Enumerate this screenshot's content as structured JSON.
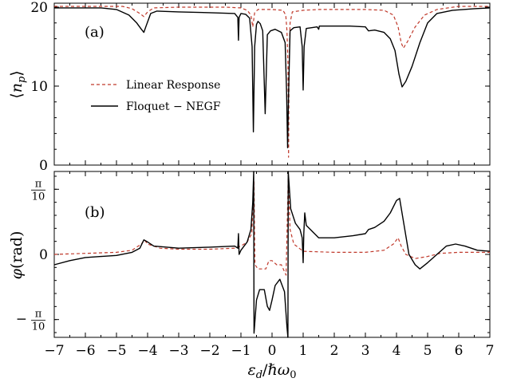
{
  "colors": {
    "linear_response": "#c0392b",
    "floquet_negf": "#000000"
  },
  "chart_data": [
    {
      "type": "line",
      "panel_label": "(a)",
      "ylabel": "⟨n_p⟩",
      "xlim": [
        -7,
        7
      ],
      "ylim": [
        0,
        20.5
      ],
      "yticks": [
        {
          "value": 0,
          "label": "0"
        },
        {
          "value": 10,
          "label": "10"
        },
        {
          "value": 20,
          "label": "20"
        }
      ],
      "legend": {
        "position": "center-left"
      },
      "series": [
        {
          "name": "Linear Response",
          "style": "dashed",
          "color": "#c0392b",
          "points": [
            [
              -7,
              20.1
            ],
            [
              -4.8,
              20.1
            ],
            [
              -4.5,
              19.8
            ],
            [
              -4.25,
              19.2
            ],
            [
              -4.12,
              18.8
            ],
            [
              -4.0,
              19.4
            ],
            [
              -3.8,
              19.9
            ],
            [
              -3,
              20.0
            ],
            [
              -1.5,
              20.0
            ],
            [
              -1.0,
              19.9
            ],
            [
              -0.8,
              19.6
            ],
            [
              -0.68,
              19.0
            ],
            [
              -0.62,
              17.5
            ],
            [
              -0.56,
              19.3
            ],
            [
              -0.45,
              19.7
            ],
            [
              0,
              19.7
            ],
            [
              0.35,
              19.6
            ],
            [
              0.44,
              19.0
            ],
            [
              0.48,
              17.0
            ],
            [
              0.51,
              13.0
            ],
            [
              0.53,
              1.0
            ],
            [
              0.55,
              13.0
            ],
            [
              0.58,
              18.0
            ],
            [
              0.65,
              19.4
            ],
            [
              1.0,
              19.6
            ],
            [
              1.5,
              19.7
            ],
            [
              3.0,
              19.7
            ],
            [
              3.6,
              19.6
            ],
            [
              3.9,
              19.0
            ],
            [
              4.05,
              17.5
            ],
            [
              4.15,
              15.5
            ],
            [
              4.22,
              14.8
            ],
            [
              4.35,
              15.6
            ],
            [
              4.6,
              17.5
            ],
            [
              4.9,
              19.0
            ],
            [
              5.3,
              19.7
            ],
            [
              6.0,
              20.1
            ],
            [
              7,
              20.1
            ]
          ]
        },
        {
          "name": "Floquet − NEGF",
          "style": "solid",
          "color": "#000000",
          "points": [
            [
              -7,
              19.9
            ],
            [
              -5.5,
              19.9
            ],
            [
              -5.0,
              19.7
            ],
            [
              -4.6,
              19.0
            ],
            [
              -4.35,
              18.0
            ],
            [
              -4.2,
              17.2
            ],
            [
              -4.12,
              16.8
            ],
            [
              -4.05,
              17.6
            ],
            [
              -3.9,
              19.2
            ],
            [
              -3.7,
              19.5
            ],
            [
              -3.0,
              19.4
            ],
            [
              -2.0,
              19.3
            ],
            [
              -1.2,
              19.2
            ],
            [
              -1.1,
              18.7
            ],
            [
              -1.08,
              15.8
            ],
            [
              -1.06,
              18.7
            ],
            [
              -1.0,
              19.2
            ],
            [
              -0.85,
              19.1
            ],
            [
              -0.72,
              18.6
            ],
            [
              -0.64,
              15.0
            ],
            [
              -0.6,
              4.2
            ],
            [
              -0.56,
              15.0
            ],
            [
              -0.5,
              17.8
            ],
            [
              -0.45,
              18.2
            ],
            [
              -0.38,
              17.9
            ],
            [
              -0.3,
              17.0
            ],
            [
              -0.22,
              6.5
            ],
            [
              -0.15,
              16.5
            ],
            [
              -0.05,
              17.0
            ],
            [
              0.1,
              17.2
            ],
            [
              0.3,
              16.8
            ],
            [
              0.42,
              15.5
            ],
            [
              0.47,
              9.0
            ],
            [
              0.5,
              2.2
            ],
            [
              0.53,
              9.0
            ],
            [
              0.58,
              17.0
            ],
            [
              0.7,
              17.4
            ],
            [
              0.9,
              17.5
            ],
            [
              0.97,
              15.0
            ],
            [
              1.0,
              9.5
            ],
            [
              1.03,
              15.0
            ],
            [
              1.1,
              17.3
            ],
            [
              1.45,
              17.5
            ],
            [
              1.5,
              17.2
            ],
            [
              1.52,
              17.6
            ],
            [
              2.5,
              17.6
            ],
            [
              3.0,
              17.5
            ],
            [
              3.1,
              17.0
            ],
            [
              3.3,
              17.1
            ],
            [
              3.6,
              16.8
            ],
            [
              3.8,
              16.0
            ],
            [
              3.95,
              14.5
            ],
            [
              4.08,
              11.5
            ],
            [
              4.18,
              9.9
            ],
            [
              4.3,
              10.6
            ],
            [
              4.5,
              12.5
            ],
            [
              4.75,
              15.5
            ],
            [
              5.0,
              18.0
            ],
            [
              5.3,
              19.2
            ],
            [
              5.8,
              19.6
            ],
            [
              6.5,
              19.8
            ],
            [
              7,
              19.9
            ]
          ]
        }
      ]
    },
    {
      "type": "line",
      "panel_label": "(b)",
      "ylabel": "φ(rad)",
      "xlabel": "ε_d/ℏω_0",
      "xlim": [
        -7,
        7
      ],
      "ylim": [
        -0.4,
        0.4
      ],
      "yticks": [
        {
          "value": -0.314159,
          "label": "−π/10"
        },
        {
          "value": 0,
          "label": "0"
        },
        {
          "value": 0.314159,
          "label": "π/10"
        }
      ],
      "xticks": [
        {
          "value": -7,
          "label": "−7"
        },
        {
          "value": -6,
          "label": "−6"
        },
        {
          "value": -5,
          "label": "−5"
        },
        {
          "value": -4,
          "label": "−4"
        },
        {
          "value": -3,
          "label": "−3"
        },
        {
          "value": -2,
          "label": "−2"
        },
        {
          "value": -1,
          "label": "−1"
        },
        {
          "value": 0,
          "label": "0"
        },
        {
          "value": 1,
          "label": "1"
        },
        {
          "value": 2,
          "label": "2"
        },
        {
          "value": 3,
          "label": "3"
        },
        {
          "value": 4,
          "label": "4"
        },
        {
          "value": 5,
          "label": "5"
        },
        {
          "value": 6,
          "label": "6"
        },
        {
          "value": 7,
          "label": "7"
        }
      ],
      "series": [
        {
          "name": "Linear Response",
          "style": "dashed",
          "color": "#c0392b",
          "points": [
            [
              -7,
              0.0
            ],
            [
              -6.0,
              0.005
            ],
            [
              -5.0,
              0.01
            ],
            [
              -4.5,
              0.02
            ],
            [
              -4.2,
              0.05
            ],
            [
              -4.1,
              0.07
            ],
            [
              -4.0,
              0.05
            ],
            [
              -3.6,
              0.03
            ],
            [
              -3.0,
              0.025
            ],
            [
              -2.0,
              0.025
            ],
            [
              -1.2,
              0.03
            ],
            [
              -1.0,
              0.04
            ],
            [
              -0.8,
              0.06
            ],
            [
              -0.65,
              0.1
            ],
            [
              -0.58,
              0.35
            ],
            [
              -0.55,
              -0.05
            ],
            [
              -0.45,
              -0.07
            ],
            [
              -0.2,
              -0.07
            ],
            [
              -0.1,
              -0.03
            ],
            [
              0.0,
              -0.03
            ],
            [
              0.15,
              -0.05
            ],
            [
              0.3,
              -0.05
            ],
            [
              0.45,
              -0.1
            ],
            [
              0.52,
              0.37
            ],
            [
              0.58,
              0.12
            ],
            [
              0.7,
              0.05
            ],
            [
              1.0,
              0.015
            ],
            [
              2.0,
              0.01
            ],
            [
              3.0,
              0.01
            ],
            [
              3.6,
              0.02
            ],
            [
              3.9,
              0.05
            ],
            [
              4.05,
              0.08
            ],
            [
              4.15,
              0.04
            ],
            [
              4.3,
              0.0
            ],
            [
              4.6,
              -0.02
            ],
            [
              5.0,
              -0.01
            ],
            [
              5.4,
              0.005
            ],
            [
              6.0,
              0.01
            ],
            [
              7,
              0.01
            ]
          ]
        },
        {
          "name": "Floquet − NEGF",
          "style": "solid",
          "color": "#000000",
          "points": [
            [
              -7,
              -0.05
            ],
            [
              -6.5,
              -0.03
            ],
            [
              -6.0,
              -0.015
            ],
            [
              -5.5,
              -0.01
            ],
            [
              -5.0,
              -0.005
            ],
            [
              -4.5,
              0.01
            ],
            [
              -4.25,
              0.03
            ],
            [
              -4.12,
              0.07
            ],
            [
              -4.0,
              0.06
            ],
            [
              -3.8,
              0.04
            ],
            [
              -3.0,
              0.03
            ],
            [
              -2.0,
              0.035
            ],
            [
              -1.2,
              0.04
            ],
            [
              -1.1,
              0.03
            ],
            [
              -1.08,
              0.1
            ],
            [
              -1.06,
              0.0
            ],
            [
              -1.0,
              0.02
            ],
            [
              -0.8,
              0.06
            ],
            [
              -0.68,
              0.12
            ],
            [
              -0.62,
              0.25
            ],
            [
              -0.59,
              0.4
            ],
            [
              -0.58,
              -0.38
            ],
            [
              -0.5,
              -0.22
            ],
            [
              -0.4,
              -0.17
            ],
            [
              -0.25,
              -0.17
            ],
            [
              -0.15,
              -0.25
            ],
            [
              -0.08,
              -0.27
            ],
            [
              0.0,
              -0.22
            ],
            [
              0.1,
              -0.15
            ],
            [
              0.25,
              -0.12
            ],
            [
              0.4,
              -0.18
            ],
            [
              0.48,
              -0.35
            ],
            [
              0.51,
              -0.4
            ],
            [
              0.52,
              0.4
            ],
            [
              0.6,
              0.22
            ],
            [
              0.75,
              0.15
            ],
            [
              0.9,
              0.12
            ],
            [
              0.97,
              0.08
            ],
            [
              1.0,
              -0.04
            ],
            [
              1.02,
              0.1
            ],
            [
              1.05,
              0.2
            ],
            [
              1.1,
              0.14
            ],
            [
              1.5,
              0.08
            ],
            [
              2.0,
              0.08
            ],
            [
              2.6,
              0.09
            ],
            [
              3.0,
              0.1
            ],
            [
              3.1,
              0.12
            ],
            [
              3.3,
              0.13
            ],
            [
              3.6,
              0.16
            ],
            [
              3.8,
              0.2
            ],
            [
              4.0,
              0.26
            ],
            [
              4.1,
              0.27
            ],
            [
              4.2,
              0.18
            ],
            [
              4.4,
              0.0
            ],
            [
              4.6,
              -0.05
            ],
            [
              4.75,
              -0.07
            ],
            [
              5.0,
              -0.04
            ],
            [
              5.3,
              0.0
            ],
            [
              5.6,
              0.04
            ],
            [
              5.9,
              0.05
            ],
            [
              6.2,
              0.04
            ],
            [
              6.6,
              0.02
            ],
            [
              7,
              0.015
            ]
          ]
        }
      ]
    }
  ]
}
